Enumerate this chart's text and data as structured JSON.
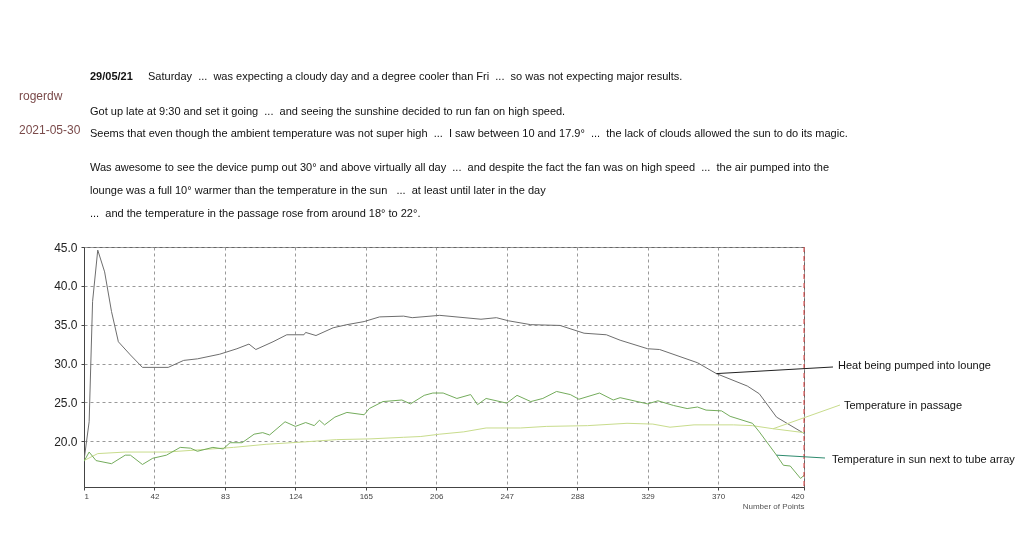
{
  "chart_data": {
    "type": "line",
    "title": "29/05/21",
    "annotations": [
      "rogerdw",
      "2021-05-30",
      "Saturday  ...  was expecting a cloudy day and a degree cooler than Fri  ...  so was not expecting major results.",
      "Got up late at 9:30 and set it going  ...  and seeing the sunshine decided to run fan on high speed.",
      "Seems that even though the ambient temperature was not super high  ...  I saw between 10 and 17.9°  ...  the lack of clouds allowed the sun to do its magic.",
      "Was awesome to see the device pump out 30° and above virtually all day  ...  and despite the fact the fan was on high speed  ...  the air pumped into the",
      "lounge was a full 10° warmer than the temperature in the sun   ...  at least until later in the day",
      "...  and the temperature in the passage rose from around 18° to 22°."
    ],
    "xlabel": "Number of Points",
    "xlim": [
      1,
      420
    ],
    "xticks": [
      1,
      42,
      83,
      124,
      165,
      206,
      247,
      288,
      329,
      370,
      420
    ],
    "ylim": [
      14.1,
      45
    ],
    "yticks": [
      {
        "value": 20,
        "label": "20.0"
      },
      {
        "value": 25,
        "label": "25.0"
      },
      {
        "value": 30,
        "label": "30.0"
      },
      {
        "value": 35,
        "label": "35.0"
      },
      {
        "value": 40,
        "label": "40.0"
      },
      {
        "value": 45,
        "label": "45.0"
      }
    ],
    "grid": true,
    "legend": false,
    "marker": "none",
    "ref_lines": [
      {
        "axis": "x",
        "value": 420,
        "color": "#e04040",
        "line_style": "dashed"
      }
    ],
    "series": [
      {
        "name": "Heat being pumped into lounge",
        "color": "#6e6e6e",
        "x": [
          1,
          4,
          6,
          9,
          13,
          17,
          21,
          28,
          35,
          50,
          59,
          67,
          80,
          90,
          97,
          101,
          111,
          119,
          129,
          130,
          136,
          146,
          154,
          164,
          173,
          187,
          192,
          208,
          232,
          241,
          248,
          261,
          278,
          292,
          305,
          313,
          329,
          336,
          358,
          369,
          387,
          394,
          404,
          420
        ],
        "values": [
          17.5,
          22.5,
          38.0,
          44.6,
          41.8,
          36.7,
          32.8,
          31.1,
          29.5,
          29.5,
          30.4,
          30.6,
          31.2,
          31.9,
          32.5,
          31.8,
          32.8,
          33.7,
          33.7,
          34.0,
          33.6,
          34.6,
          35.0,
          35.4,
          36.0,
          36.1,
          35.9,
          36.2,
          35.7,
          35.9,
          35.5,
          35.0,
          34.9,
          33.9,
          33.7,
          33.0,
          31.9,
          31.8,
          30.1,
          28.7,
          27.1,
          26.1,
          23.1,
          21.0
        ]
      },
      {
        "name": "Temperature in passage",
        "color": "#c8dc8c",
        "x": [
          1,
          9,
          25,
          49,
          69,
          88,
          107,
          129,
          148,
          168,
          187,
          197,
          208,
          222,
          235,
          255,
          270,
          294,
          317,
          332,
          342,
          356,
          379,
          390,
          402,
          420
        ],
        "values": [
          17.5,
          18.4,
          18.6,
          18.6,
          18.9,
          19.2,
          19.6,
          19.9,
          20.2,
          20.3,
          20.5,
          20.6,
          20.9,
          21.2,
          21.7,
          21.7,
          21.9,
          22.0,
          22.3,
          22.2,
          21.8,
          22.1,
          22.1,
          22.0,
          21.6,
          21.1
        ]
      },
      {
        "name": "Temperature in sun next to tube array",
        "color": "#74ac5c",
        "x": [
          1,
          4,
          8,
          17,
          25,
          28,
          35,
          41,
          49,
          57,
          63,
          67,
          76,
          82,
          86,
          93,
          100,
          105,
          109,
          118,
          124,
          130,
          135,
          138,
          141,
          147,
          154,
          164,
          167,
          175,
          186,
          191,
          199,
          204,
          210,
          218,
          226,
          230,
          235,
          247,
          253,
          261,
          268,
          276,
          284,
          289,
          301,
          309,
          313,
          329,
          335,
          344,
          352,
          358,
          363,
          372,
          377,
          390,
          394,
          404,
          408,
          412,
          418,
          420
        ],
        "values": [
          17.4,
          18.6,
          17.5,
          17.1,
          18.2,
          18.2,
          17.0,
          17.8,
          18.2,
          19.2,
          19.1,
          18.7,
          19.2,
          19.0,
          19.8,
          19.8,
          20.9,
          21.1,
          20.8,
          22.5,
          21.9,
          22.4,
          22.0,
          22.7,
          22.1,
          23.1,
          23.7,
          23.4,
          24.2,
          25.1,
          25.3,
          24.8,
          25.9,
          26.2,
          26.2,
          25.5,
          26.0,
          24.7,
          25.5,
          24.9,
          25.9,
          25.1,
          25.5,
          26.4,
          26.0,
          25.4,
          26.2,
          25.3,
          25.6,
          24.8,
          25.2,
          24.6,
          24.2,
          24.4,
          24.0,
          23.9,
          23.2,
          22.3,
          21.2,
          18.2,
          16.9,
          16.8,
          15.2,
          15.6
        ]
      }
    ]
  }
}
